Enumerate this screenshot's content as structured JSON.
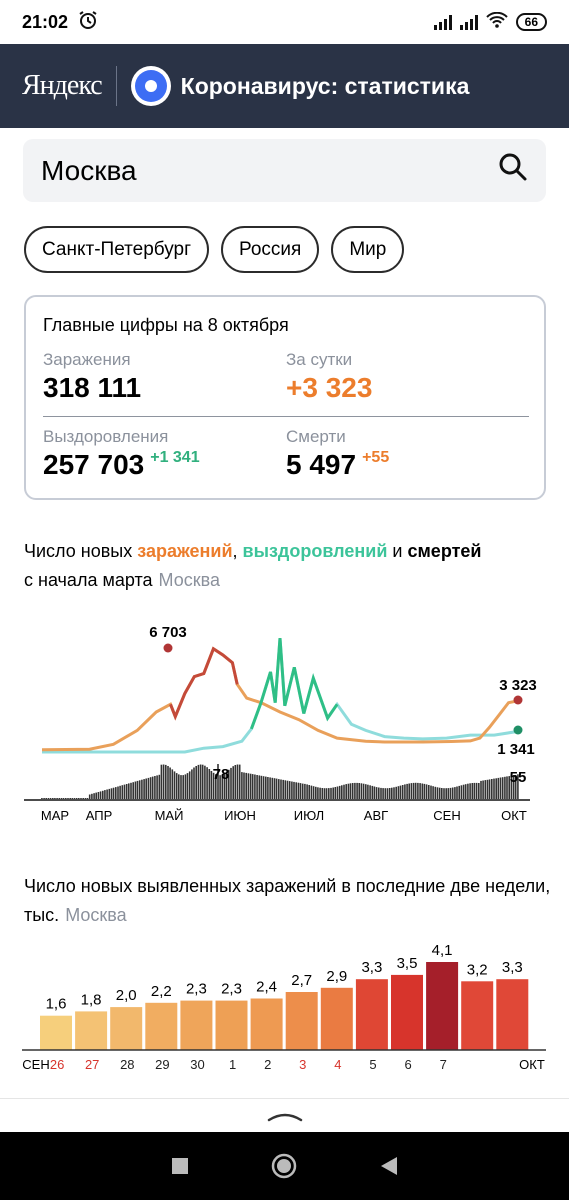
{
  "status": {
    "time": "21:02",
    "battery": "66"
  },
  "header": {
    "logo": "Яндекс",
    "title": "Коронавирус: статистика"
  },
  "search": {
    "value": "Москва"
  },
  "chips": [
    "Санкт-Петербург",
    "Россия",
    "Мир"
  ],
  "card": {
    "title": "Главные цифры на 8 октября",
    "infections_label": "Заражения",
    "infections": "318 111",
    "day_label": "За сутки",
    "day_value": "+3 323",
    "recovered_label": "Выздоровления",
    "recovered": "257 703",
    "recovered_delta": "+1 341",
    "deaths_label": "Смерти",
    "deaths": "5 497",
    "deaths_delta": "+55"
  },
  "chart1": {
    "title_prefix": "Число новых",
    "title_infections": "заражений",
    "comma": ",",
    "title_recoveries": "выздоровлений",
    "and": "и",
    "title_deaths": "смертей",
    "line2": "с начала марта",
    "region": "Москва",
    "peak_label": "6 703",
    "last_inf_label": "3 323",
    "last_rec_label": "1 341",
    "deaths_peak_label": "78",
    "deaths_last_label": "55",
    "months": [
      "МАР",
      "АПР",
      "МАЙ",
      "ИЮН",
      "ИЮЛ",
      "АВГ",
      "СЕН",
      "ОКТ"
    ],
    "colors": {
      "infections": "#e9a05a",
      "recoveries": "#8fdcdc",
      "deaths": "#222222",
      "peak_dot": "#b03535",
      "rec_dot": "#1f8f66",
      "green_spike": "#2fbf86"
    }
  },
  "chart2": {
    "title": "Число новых выявленных заражений в последние две недели, тыс.",
    "region": "Москва",
    "start_label": "СЕН",
    "end_label": "ОКТ"
  },
  "chart_data": [
    {
      "type": "line",
      "series": [
        {
          "name": "заражений",
          "points": [
            [
              0,
              140
            ],
            [
              0.1,
              180
            ],
            [
              0.15,
              500
            ],
            [
              0.2,
              1400
            ],
            [
              0.24,
              2600
            ],
            [
              0.27,
              3100
            ],
            [
              0.28,
              2300
            ],
            [
              0.3,
              3800
            ],
            [
              0.32,
              4900
            ],
            [
              0.34,
              5100
            ],
            [
              0.36,
              6703
            ],
            [
              0.38,
              6300
            ],
            [
              0.4,
              5800
            ],
            [
              0.41,
              4400
            ],
            [
              0.43,
              3500
            ],
            [
              0.46,
              3200
            ],
            [
              0.5,
              2600
            ],
            [
              0.54,
              2100
            ],
            [
              0.58,
              1400
            ],
            [
              0.62,
              900
            ],
            [
              0.68,
              700
            ],
            [
              0.72,
              650
            ],
            [
              0.8,
              650
            ],
            [
              0.86,
              680
            ],
            [
              0.9,
              720
            ],
            [
              0.92,
              900
            ],
            [
              0.94,
              1600
            ],
            [
              0.96,
              2400
            ],
            [
              0.98,
              3200
            ],
            [
              1,
              3323
            ]
          ]
        },
        {
          "name": "выздоровлений",
          "points": [
            [
              0,
              0
            ],
            [
              0.3,
              0
            ],
            [
              0.34,
              250
            ],
            [
              0.38,
              350
            ],
            [
              0.42,
              700
            ],
            [
              0.44,
              1500
            ],
            [
              0.46,
              3200
            ],
            [
              0.48,
              5200
            ],
            [
              0.49,
              3200
            ],
            [
              0.5,
              7400
            ],
            [
              0.51,
              3000
            ],
            [
              0.53,
              5500
            ],
            [
              0.55,
              2500
            ],
            [
              0.57,
              4800
            ],
            [
              0.6,
              2200
            ],
            [
              0.62,
              3100
            ],
            [
              0.65,
              1800
            ],
            [
              0.68,
              1400
            ],
            [
              0.72,
              1000
            ],
            [
              0.76,
              900
            ],
            [
              0.8,
              850
            ],
            [
              0.85,
              900
            ],
            [
              0.9,
              1100
            ],
            [
              0.95,
              1100
            ],
            [
              1,
              1341
            ]
          ]
        },
        {
          "name": "смертей",
          "peak": 78,
          "last": 55
        }
      ],
      "x": [
        "МАР",
        "АПР",
        "МАЙ",
        "ИЮН",
        "ИЮЛ",
        "АВГ",
        "СЕН",
        "ОКТ"
      ]
    },
    {
      "type": "bar",
      "categories": [
        "СЕН",
        "26",
        "27",
        "28",
        "29",
        "30",
        "1",
        "2",
        "3",
        "4",
        "5",
        "6",
        "7",
        "ОКТ"
      ],
      "category_labels_shown": [
        "26",
        "27",
        "28",
        "29",
        "30",
        "1",
        "2",
        "3",
        "4",
        "5",
        "6",
        "7"
      ],
      "values": [
        1.6,
        1.8,
        2.0,
        2.2,
        2.3,
        2.3,
        2.4,
        2.7,
        2.9,
        3.3,
        3.5,
        4.1,
        3.2,
        3.3
      ],
      "value_labels": [
        "1,6",
        "1,8",
        "2,0",
        "2,2",
        "2,3",
        "2,3",
        "2,4",
        "2,7",
        "2,9",
        "3,3",
        "3,5",
        "4,1",
        "3,2",
        "3,3"
      ],
      "colors": [
        "#f6cf7c",
        "#f4c274",
        "#f2b86c",
        "#f1ad61",
        "#efa55a",
        "#eea055",
        "#ee9a52",
        "#ed8e4b",
        "#ea7b42",
        "#df4734",
        "#d7342c",
        "#a51f2a",
        "#e04837",
        "#e04837"
      ],
      "highlight_labels": [
        "26",
        "27",
        "3",
        "4"
      ],
      "ylim": [
        0,
        4.1
      ]
    }
  ]
}
